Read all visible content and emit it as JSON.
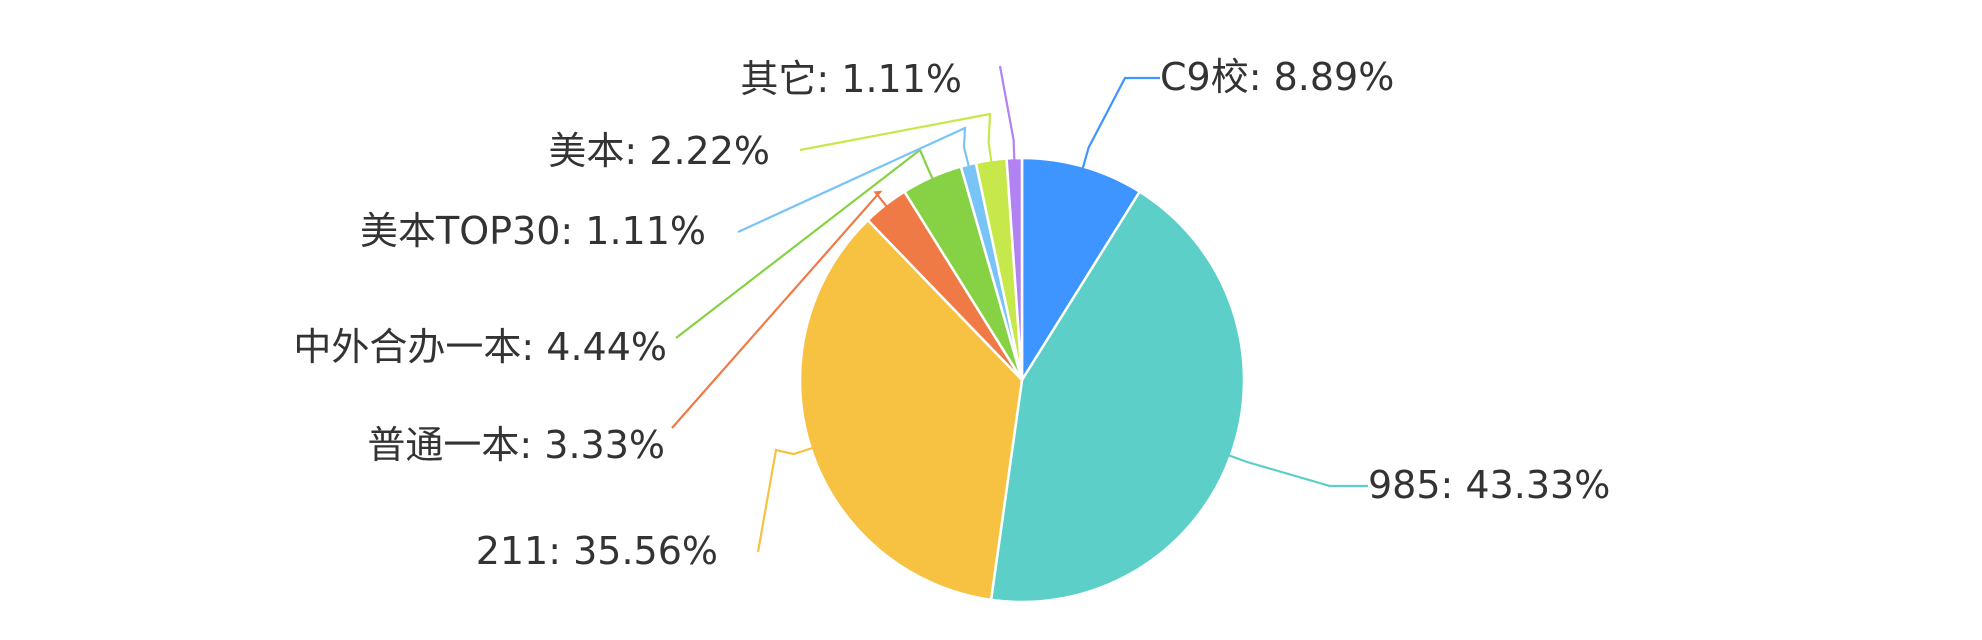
{
  "chart_data": {
    "type": "pie",
    "title": "",
    "slices": [
      {
        "name": "C9校",
        "value": 8.89,
        "label": "C9校: 8.89%",
        "color": "#3e95ff"
      },
      {
        "name": "985",
        "value": 43.33,
        "label": "985: 43.33%",
        "color": "#5ccfc8"
      },
      {
        "name": "211",
        "value": 35.56,
        "label": "211: 35.56%",
        "color": "#f7c242"
      },
      {
        "name": "普通一本",
        "value": 3.33,
        "label": "普通一本: 3.33%",
        "color": "#ef7a45"
      },
      {
        "name": "中外合办一本",
        "value": 4.44,
        "label": "中外合办一本: 4.44%",
        "color": "#86d144"
      },
      {
        "name": "美本TOP30",
        "value": 1.11,
        "label": "美本TOP30: 1.11%",
        "color": "#79c4f7"
      },
      {
        "name": "美本",
        "value": 2.22,
        "label": "美本: 2.22%",
        "color": "#c7e84a"
      },
      {
        "name": "其它",
        "value": 1.11,
        "label": "其它: 1.11%",
        "color": "#b083f0"
      }
    ],
    "start_angle": "12 o'clock",
    "direction": "clockwise",
    "legend": "none",
    "labels": "outside with leader lines"
  }
}
